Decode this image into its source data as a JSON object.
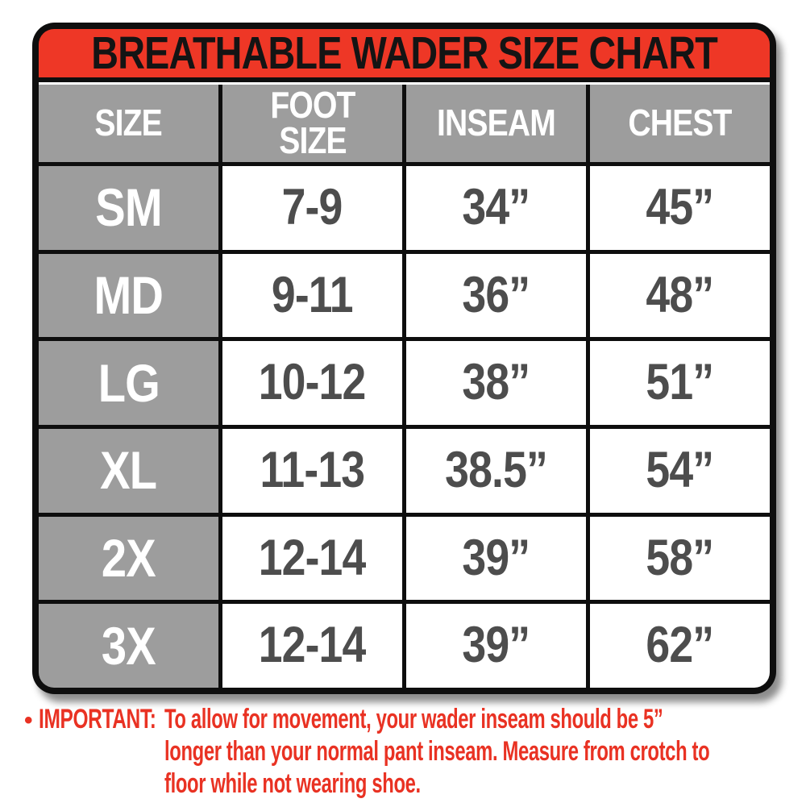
{
  "chart_data": {
    "type": "table",
    "title": "BREATHABLE WADER SIZE CHART",
    "columns": [
      "SIZE",
      "FOOT SIZE",
      "INSEAM",
      "CHEST"
    ],
    "rows": [
      [
        "SM",
        "7-9",
        "34”",
        "45”"
      ],
      [
        "MD",
        "9-11",
        "36”",
        "48”"
      ],
      [
        "LG",
        "10-12",
        "38”",
        "51”"
      ],
      [
        "XL",
        "11-13",
        "38.5”",
        "54”"
      ],
      [
        "2X",
        "12-14",
        "39”",
        "58”"
      ],
      [
        "3X",
        "12-14",
        "39”",
        "62”"
      ]
    ],
    "note": "IMPORTANT: To allow for movement, your wader inseam should be 5” longer than your normal pant inseam. Measure from crotch to floor while not wearing shoe."
  },
  "footer": {
    "bullet": "•",
    "label": "IMPORTANT:",
    "lines": [
      "To allow for movement, your wader inseam should be 5”",
      "longer than your normal pant inseam. Measure from crotch to",
      "floor while not wearing shoe."
    ]
  },
  "colors": {
    "header_red": "#ee3726",
    "cell_gray": "#9d9d9d",
    "value_text": "#4d4d4d",
    "border_black": "#0e0e0e",
    "note_red": "#e93223"
  }
}
